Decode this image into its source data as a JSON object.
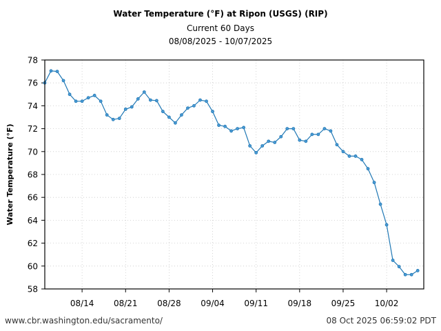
{
  "chart_data": {
    "type": "line",
    "title": "Water Temperature (°F) at Ripon (USGS) (RIP)",
    "subtitle": "Current 60 Days",
    "date_range": "08/08/2025 - 10/07/2025",
    "xlabel": "",
    "ylabel": "Water Temperature (°F)",
    "ylim": [
      58,
      78
    ],
    "yticks": [
      58,
      60,
      62,
      64,
      66,
      68,
      70,
      72,
      74,
      76,
      78
    ],
    "x_start": "08/08",
    "x_days": 60,
    "xticks": [
      {
        "label": "08/14",
        "day": 6
      },
      {
        "label": "08/21",
        "day": 13
      },
      {
        "label": "08/28",
        "day": 20
      },
      {
        "label": "09/04",
        "day": 27
      },
      {
        "label": "09/11",
        "day": 34
      },
      {
        "label": "09/18",
        "day": 41
      },
      {
        "label": "09/25",
        "day": 48
      },
      {
        "label": "10/02",
        "day": 55
      }
    ],
    "grid": true,
    "series": [
      {
        "name": "Water Temperature",
        "color": "#1f77b4",
        "values": [
          76.0,
          77.05,
          77.0,
          76.2,
          75.0,
          74.4,
          74.4,
          74.7,
          74.9,
          74.4,
          73.2,
          72.8,
          72.9,
          73.7,
          73.9,
          74.6,
          75.2,
          74.5,
          74.45,
          73.5,
          73.0,
          72.5,
          73.2,
          73.8,
          74.0,
          74.5,
          74.4,
          73.5,
          72.3,
          72.2,
          71.8,
          72.0,
          72.1,
          70.5,
          69.9,
          70.5,
          70.9,
          70.8,
          71.3,
          72.0,
          72.0,
          71.0,
          70.9,
          71.5,
          71.5,
          72.0,
          71.8,
          70.6,
          70.0,
          69.6,
          69.6,
          69.3,
          68.5,
          67.3,
          65.4,
          63.6,
          60.5,
          59.95,
          59.25,
          59.25,
          59.6
        ]
      }
    ]
  },
  "footer": {
    "source_url": "www.cbr.washington.edu/sacramento/",
    "generated": "08 Oct 2025 06:59:02 PDT"
  }
}
